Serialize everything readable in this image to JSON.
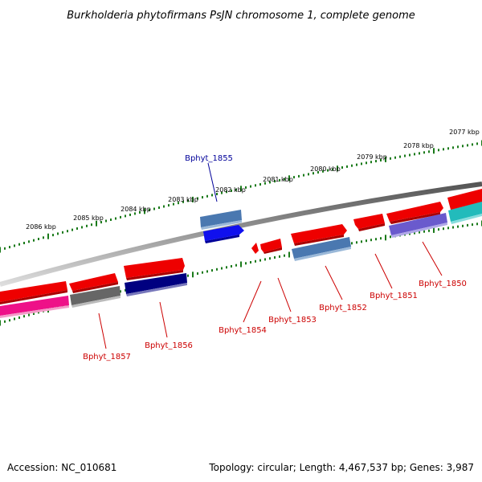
{
  "title": "Burkholderia phytofirmans PsJN chromosome 1, complete genome",
  "footer": {
    "accession": "Accession: NC_010681",
    "topology": "Topology: circular; Length: 4,467,537 bp; Genes: 3,987"
  },
  "scale_labels": [
    "2077 kbp",
    "2078 kbp",
    "2079 kbp",
    "2080 kbp",
    "2081 kbp",
    "2082 kbp",
    "2083 kbp",
    "2084 kbp",
    "2085 kbp",
    "2086 kbp"
  ],
  "gene_labels": [
    {
      "name": "Bphyt_1850",
      "color": "#cc0000"
    },
    {
      "name": "Bphyt_1851",
      "color": "#cc0000"
    },
    {
      "name": "Bphyt_1852",
      "color": "#cc0000"
    },
    {
      "name": "Bphyt_1853",
      "color": "#cc0000"
    },
    {
      "name": "Bphyt_1854",
      "color": "#cc0000"
    },
    {
      "name": "Bphyt_1855",
      "color": "#000099"
    },
    {
      "name": "Bphyt_1856",
      "color": "#cc0000"
    },
    {
      "name": "Bphyt_1857",
      "color": "#cc0000"
    }
  ],
  "colors": {
    "tick": "#1a7a1a",
    "backbone": "#888888",
    "red": "#ee0000",
    "steelblue": "#4a78b0",
    "blue": "#1010ee",
    "navy": "#000080",
    "slateblue": "#6a5acd",
    "teal": "#22bbbb",
    "magenta": "#ee1188",
    "gray": "#666666"
  }
}
